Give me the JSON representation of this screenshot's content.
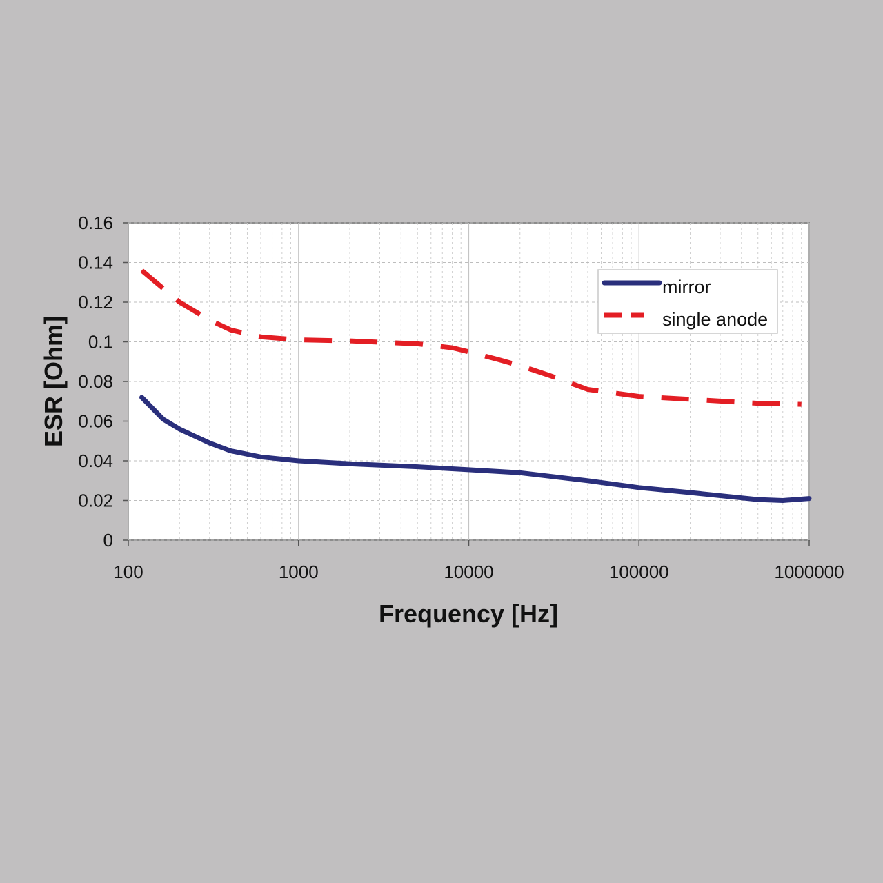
{
  "chart_data": {
    "type": "line",
    "title": "",
    "xlabel": "Frequency [Hz]",
    "ylabel": "ESR [Ohm]",
    "x_scale": "log",
    "xlim": [
      100,
      1000000
    ],
    "ylim": [
      0,
      0.16
    ],
    "x_ticks": [
      "100",
      "1000",
      "10000",
      "100000",
      "1000000"
    ],
    "x_tick_values": [
      100,
      1000,
      10000,
      100000,
      1000000
    ],
    "y_ticks": [
      "0",
      "0.02",
      "0.04",
      "0.06",
      "0.08",
      "0.1",
      "0.12",
      "0.14",
      "0.16"
    ],
    "y_tick_values": [
      0,
      0.02,
      0.04,
      0.06,
      0.08,
      0.1,
      0.12,
      0.14,
      0.16
    ],
    "grid": true,
    "legend_position": "top-right",
    "series": [
      {
        "name": "mirror",
        "color": "#2a2f7c",
        "style": "solid",
        "x": [
          120,
          160,
          200,
          300,
          400,
          600,
          1000,
          2000,
          5000,
          10000,
          20000,
          50000,
          100000,
          200000,
          500000,
          700000,
          1000000
        ],
        "y": [
          0.072,
          0.061,
          0.056,
          0.049,
          0.045,
          0.042,
          0.04,
          0.0385,
          0.037,
          0.0355,
          0.034,
          0.03,
          0.0265,
          0.024,
          0.0205,
          0.02,
          0.021
        ]
      },
      {
        "name": "single anode",
        "color": "#e31e24",
        "style": "dashed",
        "x": [
          120,
          200,
          300,
          400,
          600,
          1000,
          2000,
          5000,
          8000,
          10000,
          15000,
          20000,
          30000,
          50000,
          100000,
          200000,
          500000,
          900000
        ],
        "y": [
          0.136,
          0.12,
          0.111,
          0.106,
          0.1025,
          0.101,
          0.1005,
          0.099,
          0.097,
          0.095,
          0.091,
          0.088,
          0.083,
          0.076,
          0.0725,
          0.071,
          0.069,
          0.0685
        ]
      }
    ]
  }
}
